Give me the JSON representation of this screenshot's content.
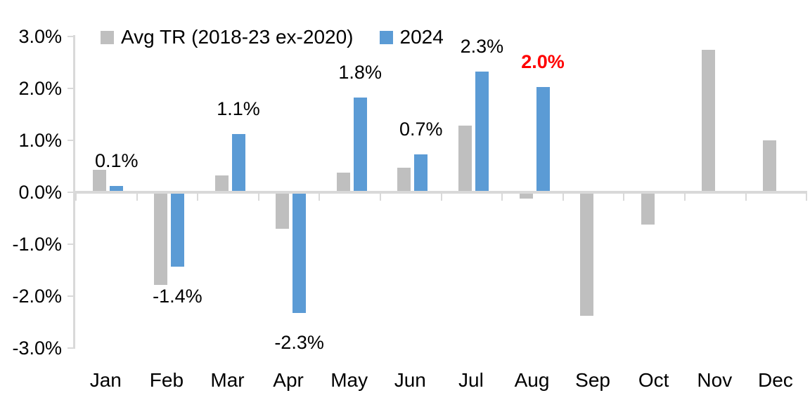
{
  "chart_data": {
    "type": "bar",
    "title": "",
    "xlabel": "",
    "ylabel": "",
    "categories": [
      "Jan",
      "Feb",
      "Mar",
      "Apr",
      "May",
      "Jun",
      "Jul",
      "Aug",
      "Sep",
      "Oct",
      "Nov",
      "Dec"
    ],
    "series": [
      {
        "name": "Avg TR (2018-23 ex-2020)",
        "color": "#bfbfbf",
        "values": [
          0.4,
          -1.75,
          0.3,
          -0.68,
          0.35,
          0.45,
          1.25,
          -0.1,
          -2.35,
          -0.6,
          2.72,
          0.97
        ]
      },
      {
        "name": "2024",
        "color": "#5b9bd5",
        "values": [
          0.1,
          -1.4,
          1.1,
          -2.3,
          1.8,
          0.7,
          2.3,
          2.0,
          null,
          null,
          null,
          null
        ],
        "data_labels": [
          {
            "text": "0.1%",
            "emphasis": false
          },
          {
            "text": "-1.4%",
            "emphasis": false
          },
          {
            "text": "1.1%",
            "emphasis": false
          },
          {
            "text": "-2.3%",
            "emphasis": false
          },
          {
            "text": "1.8%",
            "emphasis": false
          },
          {
            "text": "0.7%",
            "emphasis": false
          },
          {
            "text": "2.3%",
            "emphasis": false
          },
          {
            "text": "2.0%",
            "emphasis": true
          },
          null,
          null,
          null,
          null
        ]
      }
    ],
    "ylim": [
      -3.0,
      3.0
    ],
    "y_tick_values": [
      3,
      2,
      1,
      0,
      -1,
      -2,
      -3
    ],
    "y_tick_labels": [
      "3.0%",
      "2.0%",
      "1.0%",
      "0.0%",
      "-1.0%",
      "-2.0%",
      "-3.0%"
    ],
    "grid": false,
    "legend_position": "top-left",
    "colors": {
      "axis": "#d9d9d9",
      "text": "#000000",
      "emphasis_label": "#ff0000"
    }
  }
}
